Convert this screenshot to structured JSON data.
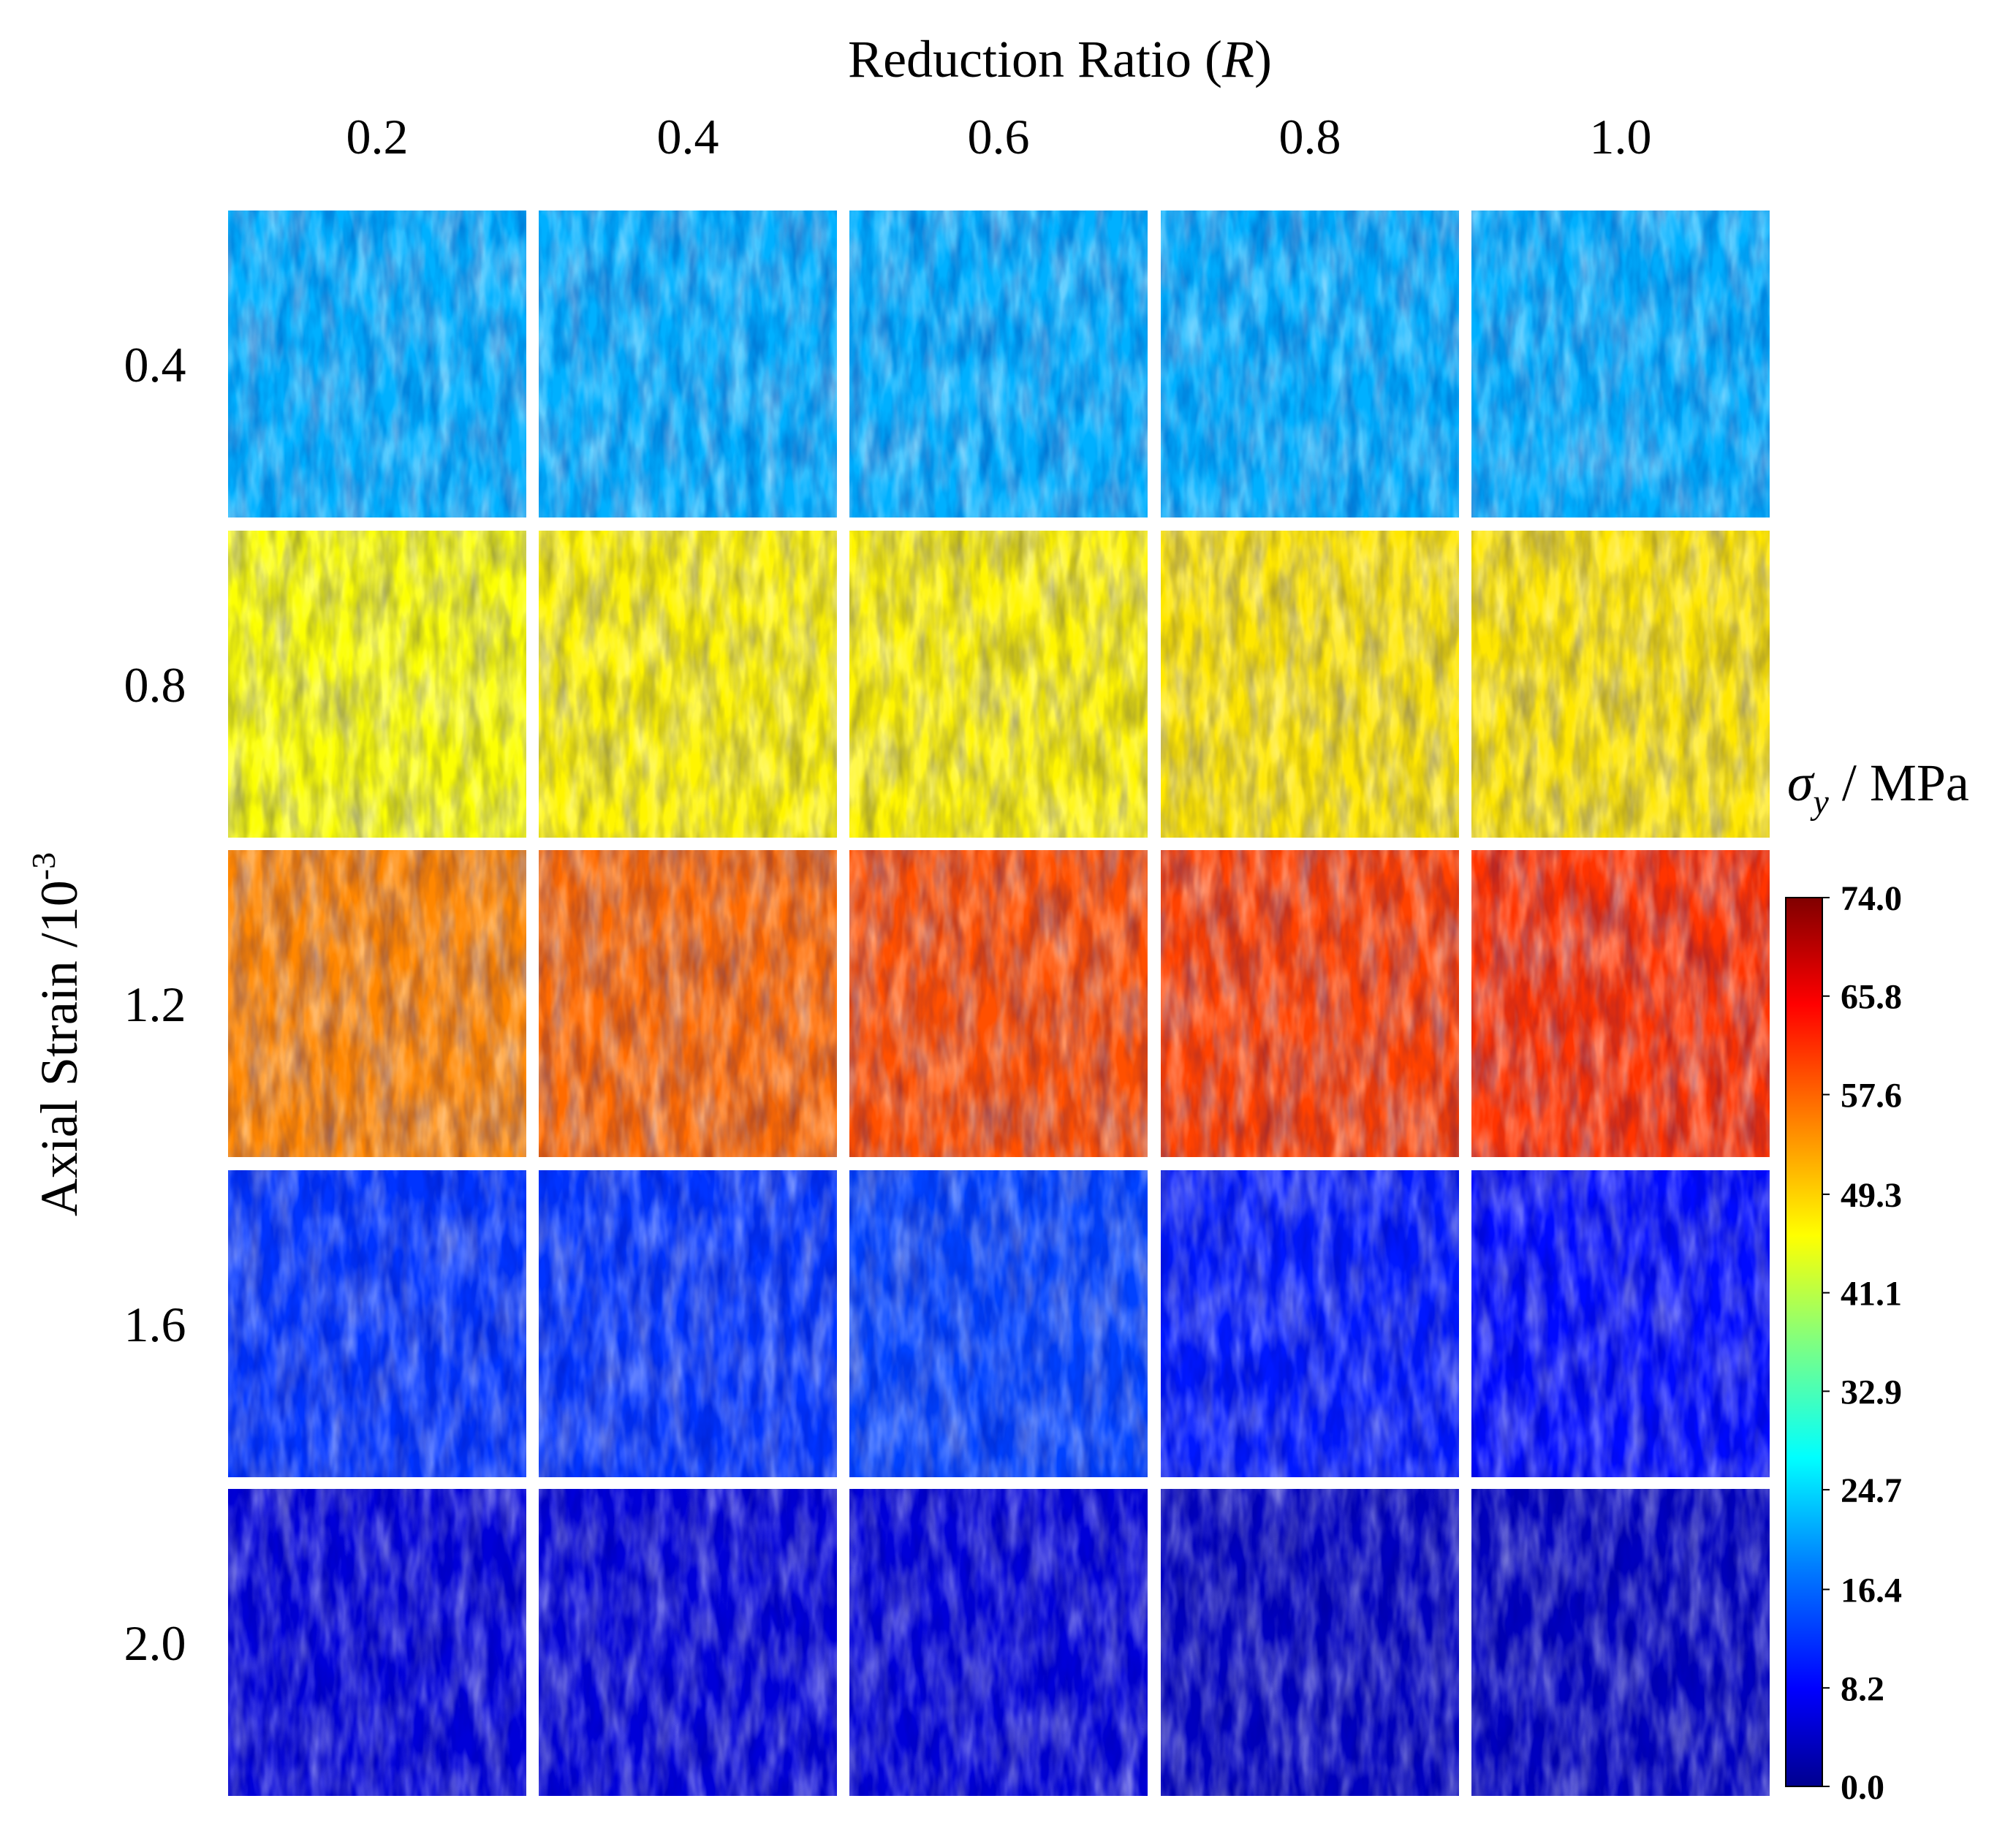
{
  "chart_data": {
    "type": "heatmap",
    "title": "",
    "xlabel_prefix": "Reduction Ratio (",
    "xlabel_symbol": "R",
    "xlabel_suffix": ")",
    "ylabel_base": "Axial Strain /10",
    "ylabel_exp": "-3",
    "columns": [
      "0.2",
      "0.4",
      "0.6",
      "0.8",
      "1.0"
    ],
    "rows": [
      "0.4",
      "0.8",
      "1.2",
      "1.6",
      "2.0"
    ],
    "colorbar": {
      "label_symbol": "σ",
      "label_sub": "y",
      "label_unit": " / MPa",
      "min": 0.0,
      "max": 74.0,
      "ticks": [
        "74.0",
        "65.8",
        "57.6",
        "49.3",
        "41.1",
        "32.9",
        "24.7",
        "16.4",
        "8.2",
        "0.0"
      ],
      "colormap": [
        "#00008f",
        "#0000ff",
        "#0080ff",
        "#00ffff",
        "#80ff80",
        "#ffff00",
        "#ff8000",
        "#ff0000",
        "#800000"
      ]
    },
    "panel_levels_mpa": [
      [
        22,
        22,
        22,
        22,
        22
      ],
      [
        46,
        47,
        47,
        48,
        48
      ],
      [
        55,
        57,
        59,
        60,
        61
      ],
      [
        13,
        13,
        14,
        11,
        10
      ],
      [
        6,
        6,
        6,
        4,
        4
      ]
    ]
  }
}
